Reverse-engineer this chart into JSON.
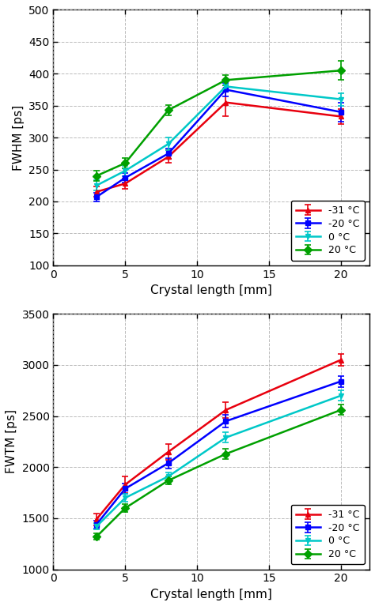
{
  "x": [
    3,
    5,
    8,
    12,
    20
  ],
  "fwhm": {
    "m31": [
      215,
      228,
      270,
      355,
      333
    ],
    "m20": [
      207,
      237,
      275,
      375,
      340
    ],
    "0": [
      225,
      248,
      290,
      380,
      360
    ],
    "20": [
      240,
      260,
      343,
      390,
      405
    ]
  },
  "fwhm_err": {
    "m31": [
      8,
      8,
      10,
      22,
      12
    ],
    "m20": [
      7,
      7,
      8,
      10,
      15
    ],
    "0": [
      8,
      8,
      10,
      8,
      10
    ],
    "20": [
      8,
      8,
      8,
      8,
      15
    ]
  },
  "fwtm": {
    "m31": [
      1490,
      1830,
      2150,
      2560,
      3050
    ],
    "m20": [
      1440,
      1790,
      2040,
      2450,
      2840
    ],
    "0": [
      1420,
      1700,
      1910,
      2290,
      2700
    ],
    "20": [
      1320,
      1600,
      1870,
      2130,
      2560
    ]
  },
  "fwtm_err": {
    "m31": [
      60,
      80,
      80,
      75,
      60
    ],
    "m20": [
      40,
      50,
      50,
      60,
      55
    ],
    "0": [
      30,
      40,
      40,
      50,
      50
    ],
    "20": [
      30,
      40,
      40,
      50,
      50
    ]
  },
  "colors": {
    "m31": "#e8000e",
    "m20": "#0000ff",
    "0": "#00c8c8",
    "20": "#00a000"
  },
  "markers": {
    "m31": "^",
    "m20": "s",
    "0": "v",
    "20": "D"
  },
  "labels": {
    "m31": "-31 °C",
    "m20": "-20 °C",
    "0": "0 °C",
    "20": "20 °C"
  },
  "fwhm_ylim": [
    100,
    500
  ],
  "fwhm_yticks": [
    100,
    150,
    200,
    250,
    300,
    350,
    400,
    450,
    500
  ],
  "fwtm_ylim": [
    1000,
    3500
  ],
  "fwtm_yticks": [
    1000,
    1500,
    2000,
    2500,
    3000,
    3500
  ],
  "xlim": [
    0,
    22
  ],
  "xticks": [
    0,
    5,
    10,
    15,
    20
  ],
  "fwhm_ylabel": "FWHM [ps]",
  "fwtm_ylabel": "FWTM [ps]",
  "xlabel": "Crystal length [mm]",
  "bg_color": "#ffffff",
  "grid_color": "#aaaaaa",
  "linewidth": 1.8,
  "markersize": 5,
  "capsize": 3,
  "tick_fontsize": 10,
  "label_fontsize": 11,
  "legend_fontsize": 9
}
